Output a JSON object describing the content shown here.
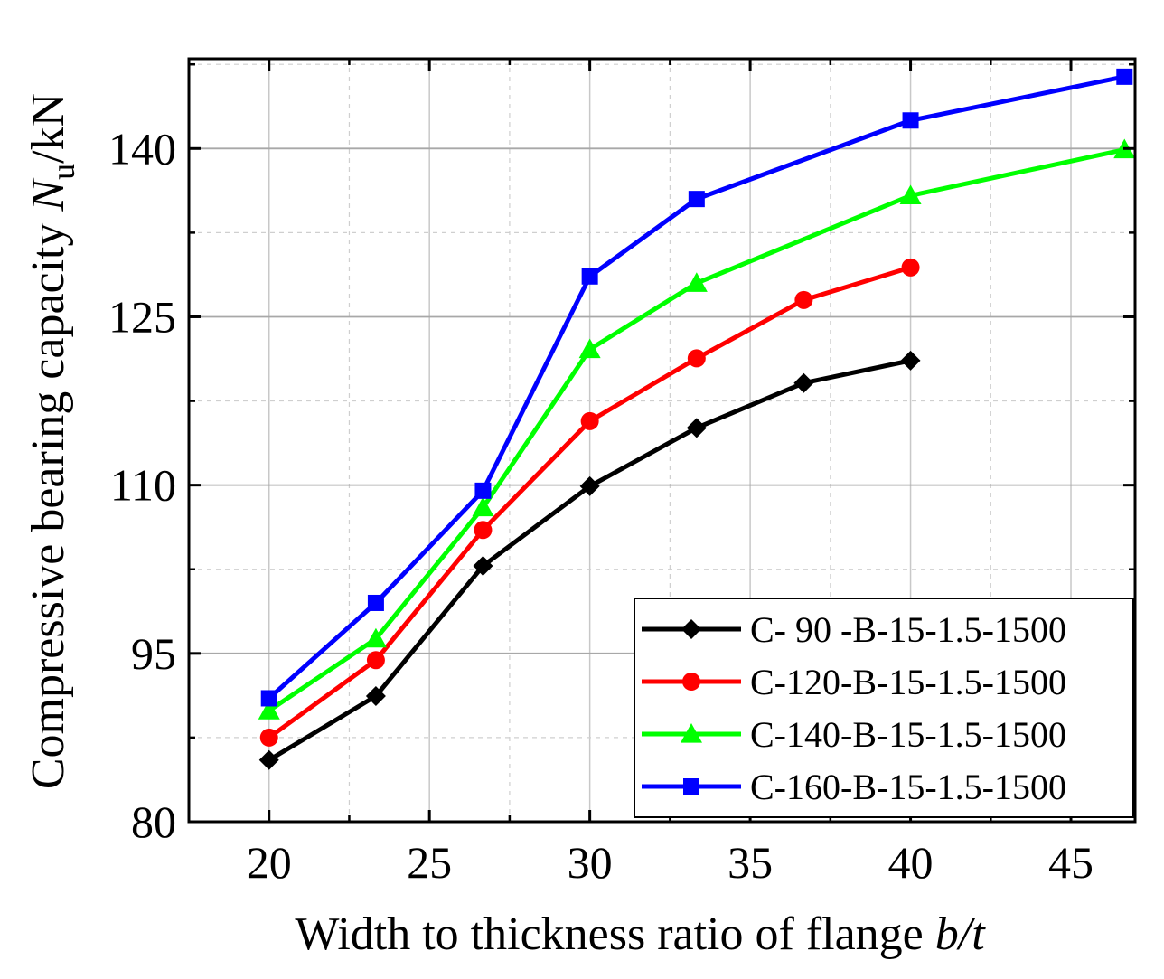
{
  "chart_data": {
    "type": "line",
    "xlabel_main": "Width to thickness ratio of flange ",
    "xlabel_var": "b/t",
    "ylabel_main": "Compressive bearing capacity ",
    "ylabel_var": "N",
    "ylabel_sub": "u",
    "ylabel_unit": "/kN",
    "xlim": [
      17.5,
      47
    ],
    "ylim": [
      80,
      148
    ],
    "x_ticks": [
      20,
      25,
      30,
      35,
      40,
      45
    ],
    "y_ticks": [
      80,
      95,
      110,
      125,
      140
    ],
    "x_tick_labels": [
      "20",
      "25",
      "30",
      "35",
      "40",
      "45"
    ],
    "y_tick_labels": [
      "80",
      "95",
      "110",
      "125",
      "140"
    ],
    "grid": true,
    "legend_position": "bottom-right",
    "series": [
      {
        "name": "C- 90 -B-15-1.5-1500",
        "color": "#000000",
        "marker": "diamond",
        "x": [
          20,
          23.33,
          26.67,
          30,
          33.33,
          36.67,
          40
        ],
        "y": [
          85.5,
          91.2,
          102.8,
          109.9,
          115.1,
          119.1,
          121.1
        ]
      },
      {
        "name": "C-120-B-15-1.5-1500",
        "color": "#ff0000",
        "marker": "circle",
        "x": [
          20,
          23.33,
          26.67,
          30,
          33.33,
          36.67,
          40
        ],
        "y": [
          87.5,
          94.4,
          106.0,
          115.7,
          121.3,
          126.5,
          129.4
        ]
      },
      {
        "name": "C-140-B-15-1.5-1500",
        "color": "#00ff00",
        "marker": "triangle",
        "x": [
          20,
          23.33,
          26.67,
          30,
          33.33,
          40,
          46.67
        ],
        "y": [
          89.9,
          96.3,
          108.0,
          122.1,
          128.0,
          135.8,
          139.9
        ]
      },
      {
        "name": "C-160-B-15-1.5-1500",
        "color": "#0000ff",
        "marker": "square",
        "x": [
          20,
          23.33,
          26.67,
          30,
          33.33,
          40,
          46.67
        ],
        "y": [
          91.0,
          99.5,
          109.5,
          128.6,
          135.5,
          142.5,
          146.4
        ]
      }
    ]
  }
}
